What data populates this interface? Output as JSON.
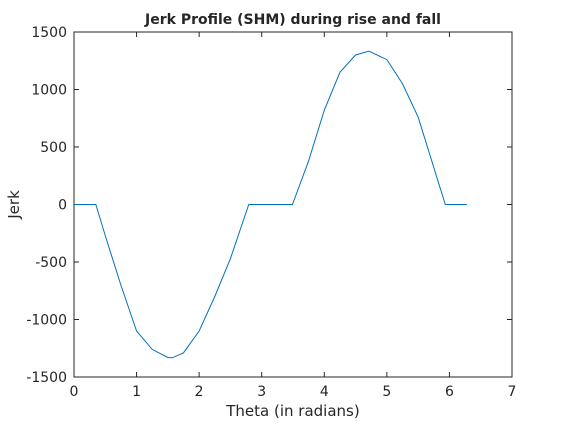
{
  "chart_data": {
    "type": "line",
    "title": "Jerk Profile (SHM) during rise and fall",
    "xlabel": "Theta (in radians)",
    "ylabel": "Jerk",
    "xlim": [
      0,
      7
    ],
    "ylim": [
      -1500,
      1500
    ],
    "xticks": [
      0,
      1,
      2,
      3,
      4,
      5,
      6,
      7
    ],
    "yticks": [
      -1500,
      -1000,
      -500,
      0,
      500,
      1000,
      1500
    ],
    "grid": false,
    "legend": "none",
    "box": true,
    "series_color": "#0072BD",
    "axis_color": "#262626",
    "series": [
      {
        "x": [
          0.0,
          0.349,
          0.5,
          0.75,
          1.0,
          1.25,
          1.5,
          1.571,
          1.75,
          2.0,
          2.25,
          2.5,
          2.793,
          3.491,
          3.75,
          4.0,
          4.25,
          4.5,
          4.712,
          5.0,
          5.25,
          5.5,
          5.934,
          6.283
        ],
        "y": [
          0,
          0,
          -272,
          -702,
          -1100,
          -1260,
          -1330,
          -1333,
          -1290,
          -1100,
          -800,
          -470,
          0,
          0,
          380,
          820,
          1150,
          1300,
          1333,
          1260,
          1050,
          760,
          0,
          0
        ]
      }
    ]
  }
}
